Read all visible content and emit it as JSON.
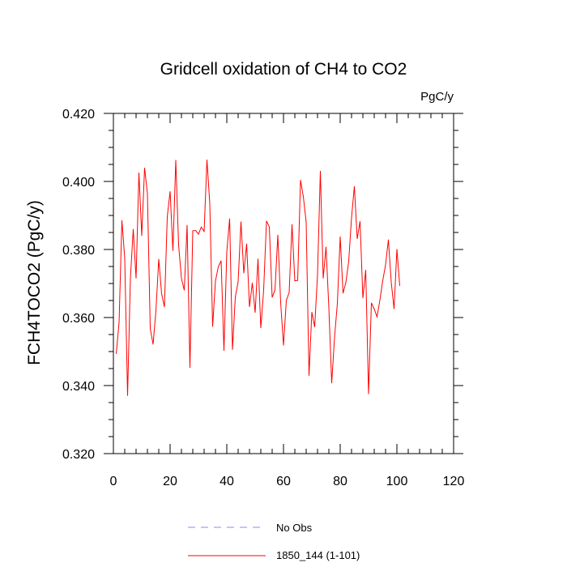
{
  "chart_data": {
    "type": "line",
    "title": "Gridcell oxidation of CH4 to CO2",
    "units": "PgC/y",
    "ylabel": "FCH4TOCO2  (PgC/y)",
    "xlabel": "",
    "xlim": [
      0,
      120
    ],
    "ylim": [
      0.32,
      0.42
    ],
    "xticks": [
      0,
      20,
      40,
      60,
      80,
      100,
      120
    ],
    "xtick_labels": [
      "0",
      "20",
      "40",
      "60",
      "80",
      "100",
      "120"
    ],
    "yticks": [
      0.32,
      0.34,
      0.36,
      0.38,
      0.4,
      0.42
    ],
    "ytick_labels": [
      "0.320",
      "0.340",
      "0.360",
      "0.380",
      "0.400",
      "0.420"
    ],
    "legend": [
      {
        "label": "No Obs",
        "color": "#8a8aff",
        "style": "dashed"
      },
      {
        "label": "1850_144 (1-101)",
        "color": "#ff0000",
        "style": "solid"
      }
    ],
    "series": [
      {
        "name": "1850_144 (1-101)",
        "color": "#ff0000",
        "x": [
          1,
          2,
          3,
          4,
          5,
          6,
          7,
          8,
          9,
          10,
          11,
          12,
          13,
          14,
          15,
          16,
          17,
          18,
          19,
          20,
          21,
          22,
          23,
          24,
          25,
          26,
          27,
          28,
          29,
          30,
          31,
          32,
          33,
          34,
          35,
          36,
          37,
          38,
          39,
          40,
          41,
          42,
          43,
          44,
          45,
          46,
          47,
          48,
          49,
          50,
          51,
          52,
          53,
          54,
          55,
          56,
          57,
          58,
          59,
          60,
          61,
          62,
          63,
          64,
          65,
          66,
          67,
          68,
          69,
          70,
          71,
          72,
          73,
          74,
          75,
          76,
          77,
          78,
          79,
          80,
          81,
          82,
          83,
          84,
          85,
          86,
          87,
          88,
          89,
          90,
          91,
          92,
          93,
          94,
          95,
          96,
          97,
          98,
          99,
          100,
          101
        ],
        "values": [
          0.3493,
          0.3585,
          0.3886,
          0.3774,
          0.337,
          0.3716,
          0.386,
          0.3715,
          0.4026,
          0.384,
          0.404,
          0.3965,
          0.3567,
          0.3521,
          0.362,
          0.3772,
          0.367,
          0.3631,
          0.3896,
          0.3971,
          0.3796,
          0.4063,
          0.3813,
          0.3715,
          0.368,
          0.3872,
          0.3452,
          0.3855,
          0.3856,
          0.3845,
          0.3866,
          0.3853,
          0.4064,
          0.3935,
          0.3573,
          0.3707,
          0.3749,
          0.3767,
          0.3502,
          0.3793,
          0.3891,
          0.3505,
          0.366,
          0.3705,
          0.3882,
          0.373,
          0.3817,
          0.3631,
          0.3702,
          0.3614,
          0.3773,
          0.3569,
          0.3681,
          0.3884,
          0.3866,
          0.3659,
          0.3681,
          0.3843,
          0.3644,
          0.3518,
          0.365,
          0.3674,
          0.3874,
          0.3708,
          0.3709,
          0.4004,
          0.3955,
          0.388,
          0.3429,
          0.3616,
          0.3572,
          0.3726,
          0.4031,
          0.3715,
          0.3808,
          0.3628,
          0.3407,
          0.3541,
          0.3642,
          0.3838,
          0.3671,
          0.3703,
          0.3765,
          0.3894,
          0.3986,
          0.3831,
          0.3883,
          0.3657,
          0.374,
          0.3375,
          0.3643,
          0.3625,
          0.3602,
          0.3651,
          0.3708,
          0.3755,
          0.3829,
          0.3704,
          0.3625,
          0.3801,
          0.3693
        ]
      }
    ]
  }
}
